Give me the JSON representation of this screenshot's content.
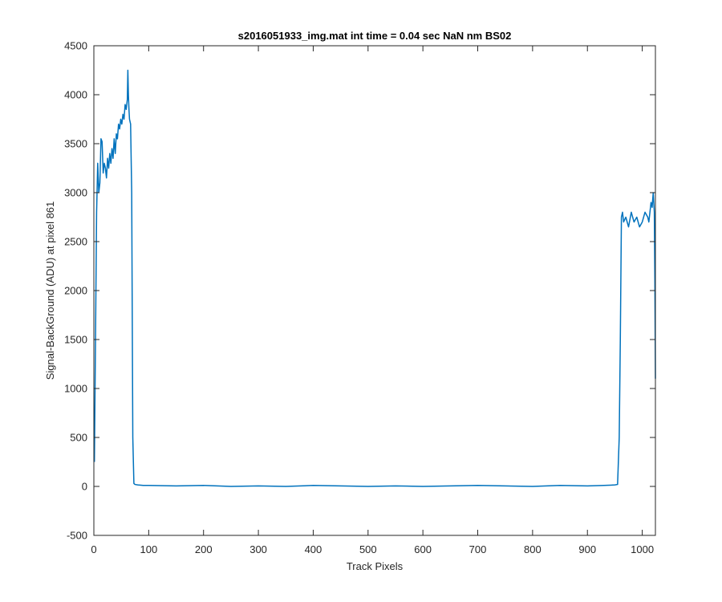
{
  "chart_data": {
    "type": "line",
    "title": "s2016051933_img.mat int time = 0.04 sec  NaN nm BS02",
    "xlabel": "Track Pixels",
    "ylabel": "Signal-BackGround (ADU) at pixel 861",
    "xlim": [
      0,
      1024
    ],
    "ylim": [
      -500,
      4500
    ],
    "xticks": [
      0,
      100,
      200,
      300,
      400,
      500,
      600,
      700,
      800,
      900,
      1000
    ],
    "yticks": [
      -500,
      0,
      500,
      1000,
      1500,
      2000,
      2500,
      3000,
      3500,
      4000,
      4500
    ],
    "grid": false,
    "legend": false,
    "line_color": "#0072BD",
    "series": [
      {
        "x": [
          1,
          3,
          5,
          7,
          9,
          11,
          13,
          15,
          17,
          19,
          21,
          23,
          25,
          27,
          29,
          31,
          33,
          35,
          37,
          39,
          41,
          43,
          45,
          47,
          49,
          51,
          53,
          55,
          57,
          59,
          61,
          62,
          63,
          64,
          65,
          67,
          69,
          71,
          73,
          75,
          80,
          90,
          100,
          150,
          200,
          250,
          300,
          350,
          400,
          450,
          500,
          550,
          600,
          650,
          700,
          750,
          800,
          850,
          900,
          930,
          950,
          955,
          958,
          960,
          962,
          964,
          966,
          970,
          975,
          980,
          985,
          990,
          995,
          1000,
          1005,
          1010,
          1012,
          1014,
          1016,
          1018,
          1020,
          1022,
          1023,
          1024
        ],
        "y": [
          250,
          1500,
          2800,
          3300,
          3000,
          3100,
          3550,
          3520,
          3200,
          3300,
          3250,
          3150,
          3350,
          3250,
          3400,
          3300,
          3450,
          3350,
          3550,
          3400,
          3600,
          3550,
          3700,
          3650,
          3750,
          3700,
          3800,
          3750,
          3900,
          3850,
          3950,
          4250,
          4000,
          3850,
          3750,
          3700,
          3000,
          500,
          30,
          20,
          15,
          10,
          10,
          5,
          10,
          0,
          5,
          0,
          10,
          5,
          0,
          5,
          0,
          5,
          10,
          5,
          0,
          10,
          5,
          10,
          15,
          20,
          500,
          1500,
          2750,
          2800,
          2700,
          2750,
          2650,
          2800,
          2700,
          2750,
          2650,
          2700,
          2800,
          2750,
          2700,
          2800,
          2900,
          2850,
          3000,
          2800,
          2100,
          1100
        ]
      }
    ]
  }
}
